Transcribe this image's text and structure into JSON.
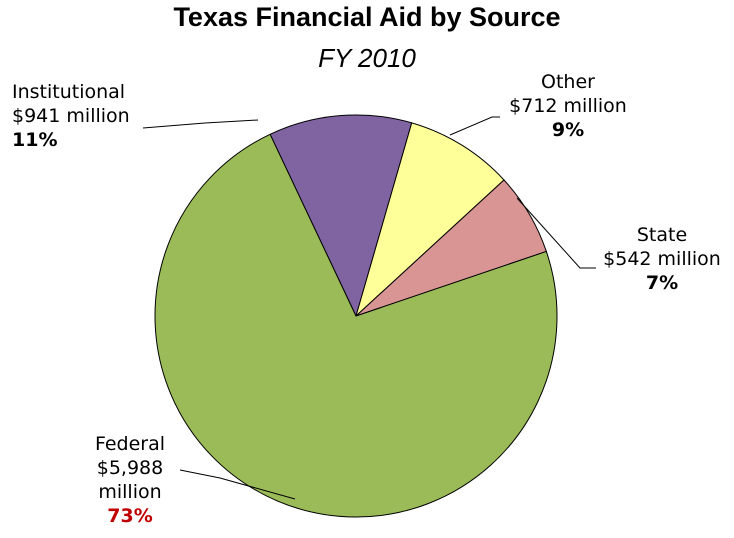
{
  "chart_data": {
    "type": "pie",
    "title": "Texas Financial Aid by Source",
    "subtitle": "FY 2010",
    "slices": [
      {
        "name": "Federal",
        "amount": "$5,988",
        "unit": "million",
        "value": 5988,
        "percent": "73%",
        "color": "#9bbb59",
        "percent_color": "#c00000"
      },
      {
        "name": "Institutional",
        "amount": "$941",
        "unit": "million",
        "value": 941,
        "percent": "11%",
        "color": "#8064a2",
        "percent_color": "#000000"
      },
      {
        "name": "Other",
        "amount": "$712",
        "unit": "million",
        "value": 712,
        "percent": "9%",
        "color": "#ffff99",
        "percent_color": "#000000"
      },
      {
        "name": "State",
        "amount": "$542",
        "unit": "million",
        "value": 542,
        "percent": "7%",
        "color": "#d99594",
        "percent_color": "#000000"
      }
    ]
  }
}
